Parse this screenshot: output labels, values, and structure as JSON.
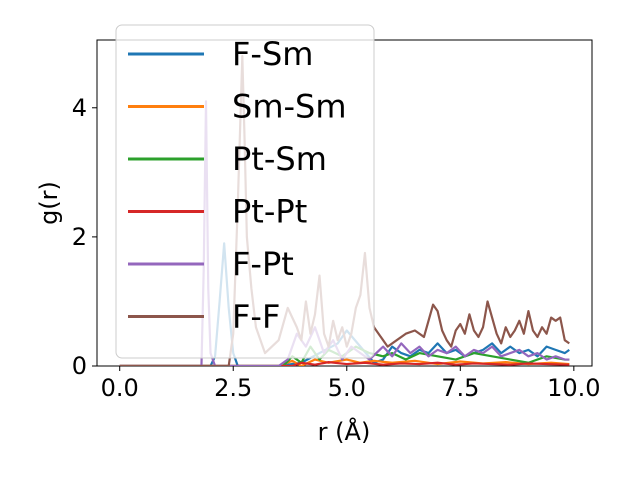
{
  "chart_data": {
    "type": "line",
    "title": "",
    "xlabel": "r (Å)",
    "ylabel": "g(r)",
    "xlim": [
      -0.5,
      10.4
    ],
    "ylim": [
      0,
      5.05
    ],
    "xticks": [
      0.0,
      2.5,
      5.0,
      7.5,
      10.0
    ],
    "xtick_labels": [
      "0.0",
      "2.5",
      "5.0",
      "7.5",
      "10.0"
    ],
    "yticks": [
      0,
      2,
      4
    ],
    "ytick_labels": [
      "0",
      "2",
      "4"
    ],
    "grid": false,
    "legend_position": "top-left",
    "series": [
      {
        "name": "F-Sm",
        "color": "#1f77b4",
        "x": [
          0,
          2.0,
          2.1,
          2.2,
          2.3,
          2.4,
          2.5,
          2.6,
          3.0,
          3.5,
          4.0,
          4.4,
          4.8,
          5.0,
          5.3,
          5.6,
          5.8,
          6.0,
          6.2,
          6.4,
          6.6,
          6.8,
          7.0,
          7.2,
          7.4,
          7.6,
          7.8,
          8.0,
          8.2,
          8.4,
          8.6,
          8.8,
          9.0,
          9.2,
          9.4,
          9.6,
          9.8,
          9.9
        ],
        "y": [
          0,
          0,
          0.15,
          1.0,
          1.9,
          0.9,
          0.2,
          0,
          0,
          0,
          0.05,
          0.2,
          0.35,
          0.55,
          0.3,
          0.05,
          0.1,
          0.3,
          0.2,
          0.15,
          0.25,
          0.2,
          0.35,
          0.2,
          0.25,
          0.15,
          0.2,
          0.25,
          0.35,
          0.2,
          0.3,
          0.2,
          0.25,
          0.15,
          0.3,
          0.25,
          0.2,
          0.25
        ]
      },
      {
        "name": "Sm-Sm",
        "color": "#ff7f0e",
        "x": [
          0,
          3.5,
          3.8,
          4.0,
          4.3,
          4.6,
          5.0,
          5.3,
          5.6,
          6.0,
          6.5,
          7.0,
          7.5,
          8.0,
          8.5,
          9.0,
          9.5,
          9.9
        ],
        "y": [
          0,
          0,
          0.08,
          0,
          0.1,
          0.05,
          0.1,
          0.05,
          0.08,
          0.05,
          0.08,
          0.03,
          0.07,
          0.04,
          0.06,
          0.03,
          0.05,
          0.03
        ]
      },
      {
        "name": "Pt-Sm",
        "color": "#2ca02c",
        "x": [
          0,
          3.6,
          3.8,
          4.0,
          4.2,
          4.4,
          4.6,
          4.9,
          5.2,
          5.5,
          5.8,
          6.0,
          6.3,
          6.6,
          7.0,
          7.4,
          7.8,
          8.2,
          8.6,
          9.0,
          9.4,
          9.8,
          9.9
        ],
        "y": [
          0,
          0,
          0.15,
          0.05,
          0.3,
          0.1,
          0.25,
          0.15,
          0.3,
          0.2,
          0.15,
          0.2,
          0.1,
          0.2,
          0.15,
          0.1,
          0.2,
          0.15,
          0.1,
          0.05,
          0.15,
          0.1,
          0.1
        ]
      },
      {
        "name": "Pt-Pt",
        "color": "#d62728",
        "x": [
          0,
          3.8,
          4.0,
          4.3,
          4.6,
          5.0,
          5.4,
          5.8,
          6.2,
          6.6,
          7.0,
          7.4,
          7.8,
          8.2,
          8.6,
          9.0,
          9.4,
          9.9
        ],
        "y": [
          0,
          0,
          0.05,
          0.02,
          0.06,
          0.03,
          0.05,
          0.02,
          0.04,
          0.03,
          0.05,
          0.02,
          0.04,
          0.03,
          0.02,
          0.04,
          0.03,
          0.02
        ]
      },
      {
        "name": "F-Pt",
        "color": "#9467bd",
        "x": [
          0,
          1.8,
          1.85,
          1.9,
          1.95,
          2.0,
          2.1,
          3.5,
          3.7,
          3.9,
          4.1,
          4.3,
          4.5,
          4.7,
          4.9,
          5.1,
          5.3,
          5.5,
          5.8,
          6.0,
          6.2,
          6.4,
          6.6,
          6.8,
          7.0,
          7.2,
          7.4,
          7.6,
          7.8,
          8.0,
          8.2,
          8.4,
          8.6,
          8.8,
          9.0,
          9.2,
          9.4,
          9.6,
          9.8,
          9.9
        ],
        "y": [
          0,
          0,
          1.5,
          4.1,
          1.2,
          0.2,
          0,
          0,
          0.1,
          0.5,
          0.3,
          0.6,
          0.2,
          0.4,
          0.1,
          0.3,
          0.2,
          0.1,
          0.3,
          0.15,
          0.35,
          0.2,
          0.3,
          0.15,
          0.25,
          0.2,
          0.3,
          0.15,
          0.25,
          0.2,
          0.3,
          0.15,
          0.2,
          0.25,
          0.15,
          0.2,
          0.1,
          0.15,
          0.1,
          0.1
        ]
      },
      {
        "name": "F-F",
        "color": "#8c564b",
        "x": [
          0,
          2.4,
          2.5,
          2.6,
          2.7,
          2.75,
          2.8,
          2.9,
          3.0,
          3.2,
          3.5,
          3.7,
          3.9,
          4.0,
          4.1,
          4.2,
          4.3,
          4.4,
          4.5,
          4.6,
          4.7,
          4.8,
          4.9,
          5.0,
          5.1,
          5.2,
          5.3,
          5.4,
          5.5,
          5.6,
          5.7,
          5.9,
          6.1,
          6.3,
          6.5,
          6.7,
          6.8,
          6.9,
          7.0,
          7.1,
          7.2,
          7.3,
          7.4,
          7.5,
          7.6,
          7.7,
          7.8,
          7.9,
          8.0,
          8.1,
          8.2,
          8.3,
          8.4,
          8.5,
          8.6,
          8.7,
          8.8,
          8.9,
          9.0,
          9.1,
          9.2,
          9.3,
          9.4,
          9.5,
          9.6,
          9.7,
          9.8,
          9.9
        ],
        "y": [
          0,
          0,
          0.5,
          2.5,
          4.8,
          3.5,
          2.0,
          1.2,
          0.6,
          0.2,
          0.4,
          0.9,
          0.6,
          0.4,
          1.0,
          0.5,
          0.8,
          1.4,
          0.5,
          0.3,
          0.7,
          0.4,
          0.6,
          0.3,
          0.5,
          0.9,
          1.1,
          1.75,
          0.9,
          0.6,
          0.5,
          0.3,
          0.4,
          0.5,
          0.55,
          0.45,
          0.7,
          0.95,
          0.85,
          0.55,
          0.4,
          0.3,
          0.55,
          0.65,
          0.5,
          0.8,
          0.55,
          0.45,
          0.6,
          1.0,
          0.75,
          0.5,
          0.35,
          0.6,
          0.45,
          0.55,
          0.7,
          0.5,
          0.85,
          0.55,
          0.45,
          0.6,
          0.5,
          0.75,
          0.7,
          0.75,
          0.4,
          0.35
        ]
      }
    ]
  }
}
